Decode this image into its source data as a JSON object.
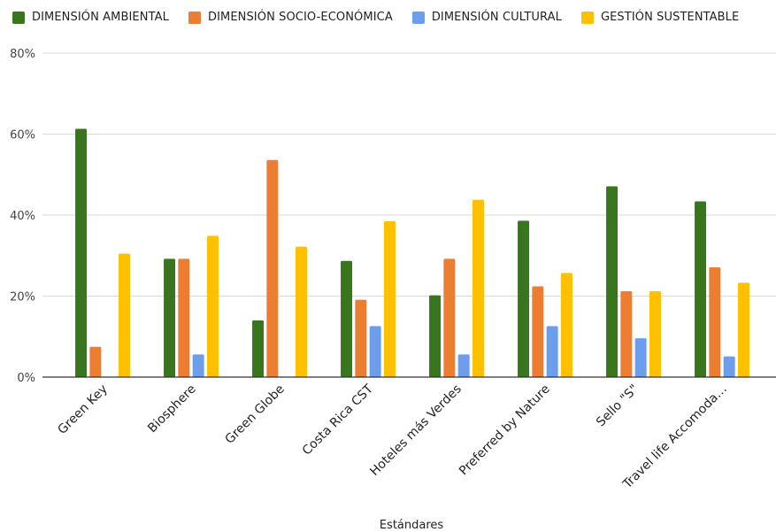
{
  "chart_data": {
    "type": "bar",
    "title": "",
    "xlabel": "Estándares",
    "ylabel": "",
    "ylim": [
      0,
      80
    ],
    "yticks": [
      0,
      20,
      40,
      60,
      80
    ],
    "ytick_suffix": "%",
    "grid": true,
    "legend_position": "top",
    "categories": [
      "Green Key",
      "Biosphere",
      "Green Globe",
      "Costa Rica CST",
      "Hoteles más Verdes",
      "Preferred by Nature",
      "Sello \"S\"",
      "Travel life Accomoda…"
    ],
    "series": [
      {
        "name": "DIMENSIÓN AMBIENTAL",
        "color": "#38761d",
        "values": [
          61.3,
          29.2,
          14.0,
          28.7,
          20.2,
          38.6,
          47.1,
          43.4
        ]
      },
      {
        "name": "DIMENSIÓN SOCIO-ECONÓMICA",
        "color": "#ed7d31",
        "values": [
          7.5,
          29.2,
          53.6,
          19.1,
          29.2,
          22.4,
          21.2,
          27.1
        ]
      },
      {
        "name": "DIMENSIÓN CULTURAL",
        "color": "#6d9eeb",
        "values": [
          0,
          5.6,
          0,
          12.6,
          5.6,
          12.6,
          9.6,
          5.1
        ]
      },
      {
        "name": "GESTIÓN SUSTENTABLE",
        "color": "#ffc000",
        "values": [
          30.5,
          34.9,
          32.2,
          38.5,
          43.8,
          25.7,
          21.2,
          23.3
        ]
      }
    ]
  }
}
